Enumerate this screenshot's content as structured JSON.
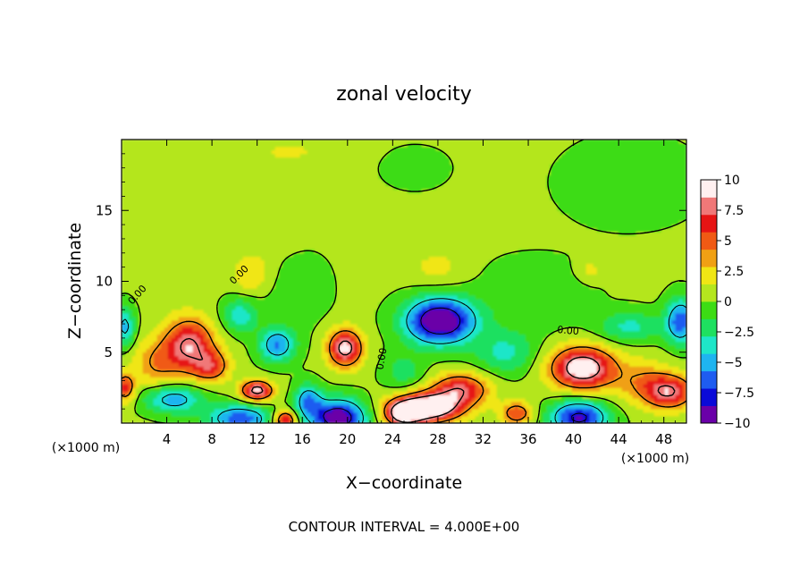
{
  "chart_data": {
    "type": "heatmap",
    "title": "zonal velocity",
    "xlabel": "X−coordinate",
    "ylabel": "Z−coordinate",
    "x_unit_left": "(×1000 m)",
    "x_unit_right": "(×1000 m)",
    "xlim": [
      0,
      50
    ],
    "ylim": [
      0,
      20
    ],
    "xticks": [
      4,
      8,
      12,
      16,
      20,
      24,
      28,
      32,
      36,
      40,
      44,
      48
    ],
    "xtick_labels": [
      "4",
      "8",
      "12",
      "16",
      "20",
      "24",
      "28",
      "32",
      "36",
      "40",
      "44",
      "48"
    ],
    "yticks": [
      5,
      10,
      15
    ],
    "ytick_labels": [
      "5",
      "10",
      "15"
    ],
    "colorbar": {
      "range": [
        -10,
        10
      ],
      "ticks": [
        10,
        7.5,
        5,
        2.5,
        0,
        -2.5,
        -5,
        -7.5,
        -10
      ],
      "tick_labels": [
        "10",
        "7.5",
        "5",
        "2.5",
        "0",
        "−2.5",
        "−5",
        "−7.5",
        "−10"
      ],
      "colors": [
        "#6a00a8",
        "#0a0ad8",
        "#1e5cf0",
        "#1eb4f0",
        "#1ee6c8",
        "#1ee060",
        "#3cdc14",
        "#b4e61e",
        "#f0e614",
        "#f0a014",
        "#f05a14",
        "#e61414",
        "#f07878",
        "#fff0f0"
      ]
    },
    "contour_interval_label": "CONTOUR INTERVAL = 4.000E+00",
    "contour_label": "0.00",
    "background_value": 0.3,
    "features": [
      {
        "x": 28.2,
        "y": 7.2,
        "value": -11.5,
        "rx": 3.0,
        "ry": 1.6
      },
      {
        "x": 19.2,
        "y": 0.4,
        "value": -10.5,
        "rx": 2.4,
        "ry": 1.3
      },
      {
        "x": 40.5,
        "y": 0.4,
        "value": -9.0,
        "rx": 2.5,
        "ry": 1.2
      },
      {
        "x": 10.5,
        "y": 0.3,
        "value": -7.0,
        "rx": 2.8,
        "ry": 1.0
      },
      {
        "x": 4.6,
        "y": 1.7,
        "value": -5.5,
        "rx": 2.6,
        "ry": 1.0
      },
      {
        "x": 13.8,
        "y": 5.5,
        "value": -6.0,
        "rx": 1.6,
        "ry": 1.2
      },
      {
        "x": 16.5,
        "y": 1.6,
        "value": -5.5,
        "rx": 1.2,
        "ry": 1.2
      },
      {
        "x": 49.5,
        "y": 7.2,
        "value": -7.0,
        "rx": 1.3,
        "ry": 1.6
      },
      {
        "x": 0.3,
        "y": 6.8,
        "value": -5.0,
        "rx": 0.9,
        "ry": 1.4
      },
      {
        "x": 10.5,
        "y": 7.6,
        "value": -4.0,
        "rx": 1.6,
        "ry": 1.2
      },
      {
        "x": 45.0,
        "y": 6.8,
        "value": -3.5,
        "rx": 2.8,
        "ry": 1.1
      },
      {
        "x": 34.0,
        "y": 5.0,
        "value": -3.5,
        "rx": 2.6,
        "ry": 1.5
      },
      {
        "x": 36.5,
        "y": 9.0,
        "value": -1.5,
        "rx": 5.0,
        "ry": 2.5
      },
      {
        "x": 15.5,
        "y": 9.5,
        "value": -1.2,
        "rx": 3.0,
        "ry": 3.0
      },
      {
        "x": 25.0,
        "y": 3.6,
        "value": -2.5,
        "rx": 1.8,
        "ry": 1.3
      },
      {
        "x": 6.0,
        "y": 5.5,
        "value": 8.0,
        "rx": 2.2,
        "ry": 1.9
      },
      {
        "x": 3.0,
        "y": 4.2,
        "value": 3.5,
        "rx": 2.0,
        "ry": 1.7
      },
      {
        "x": 8.0,
        "y": 4.0,
        "value": 5.0,
        "rx": 1.6,
        "ry": 1.1
      },
      {
        "x": 19.8,
        "y": 5.3,
        "value": 9.0,
        "rx": 1.5,
        "ry": 1.3
      },
      {
        "x": 12.0,
        "y": 2.3,
        "value": 9.0,
        "rx": 1.4,
        "ry": 0.7
      },
      {
        "x": 14.5,
        "y": 0.2,
        "value": 8.0,
        "rx": 1.0,
        "ry": 0.7
      },
      {
        "x": 27.0,
        "y": 1.1,
        "value": 12.0,
        "rx": 3.0,
        "ry": 1.0
      },
      {
        "x": 25.0,
        "y": 0.6,
        "value": 8.0,
        "rx": 1.5,
        "ry": 0.8
      },
      {
        "x": 30.0,
        "y": 2.4,
        "value": 7.0,
        "rx": 2.5,
        "ry": 1.1
      },
      {
        "x": 35.0,
        "y": 0.7,
        "value": 5.5,
        "rx": 1.4,
        "ry": 0.8
      },
      {
        "x": 40.8,
        "y": 3.9,
        "value": 10.0,
        "rx": 2.8,
        "ry": 1.5
      },
      {
        "x": 48.5,
        "y": 2.2,
        "value": 7.5,
        "rx": 2.2,
        "ry": 1.2
      },
      {
        "x": 0.3,
        "y": 2.5,
        "value": 6.0,
        "rx": 0.9,
        "ry": 1.0
      },
      {
        "x": 46.0,
        "y": 3.0,
        "value": 3.0,
        "rx": 2.5,
        "ry": 1.5
      },
      {
        "x": 11.5,
        "y": 10.5,
        "value": 2.5,
        "rx": 1.6,
        "ry": 1.3
      },
      {
        "x": 13.0,
        "y": 14.5,
        "value": 0.8,
        "rx": 3.5,
        "ry": 3.5
      },
      {
        "x": 41.5,
        "y": 10.8,
        "value": 1.8,
        "rx": 1.2,
        "ry": 0.8
      },
      {
        "x": 28.0,
        "y": 11.0,
        "value": 1.6,
        "rx": 2.5,
        "ry": 1.4
      },
      {
        "x": 15.0,
        "y": 19.2,
        "value": 1.2,
        "rx": 4.0,
        "ry": 1.0
      },
      {
        "x": 45.0,
        "y": 17.0,
        "value": -1.3,
        "rx": 6.0,
        "ry": 3.0
      },
      {
        "x": 26.0,
        "y": 18.0,
        "value": -0.6,
        "rx": 4.0,
        "ry": 2.0
      }
    ]
  }
}
